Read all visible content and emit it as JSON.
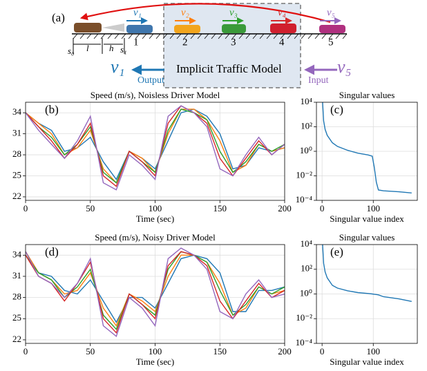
{
  "diagram": {
    "panel_label": "(a)",
    "speeds": [
      "v₁",
      "v₂",
      "v₃",
      "v₄",
      "v₅"
    ],
    "positions": [
      "s₀",
      "l",
      "h",
      "s₁"
    ],
    "car_numbers": [
      "1",
      "2",
      "3",
      "4",
      "5"
    ],
    "model": "Implicit Traffic Model",
    "output": "Output",
    "input": "Input",
    "output_speed": "v₁",
    "input_speed": "v₅"
  },
  "chart_data": [
    {
      "type": "line",
      "panel_label": "(b)",
      "title": "Speed (m/s), Noisless Driver Model",
      "xlabel": "Time (sec)",
      "x": [
        0,
        10,
        20,
        30,
        40,
        50,
        60,
        70,
        80,
        90,
        100,
        110,
        120,
        130,
        140,
        150,
        160,
        170,
        180,
        190,
        200
      ],
      "xlim": [
        0,
        200
      ],
      "xticks": [
        0,
        50,
        100,
        150,
        200
      ],
      "ylim": [
        21.5,
        35.5
      ],
      "yticks": [
        22,
        25,
        28,
        31,
        34
      ],
      "grid": true,
      "log_y": false,
      "series": [
        {
          "color": "#1f77b4",
          "values": [
            34,
            32.5,
            31.5,
            28.5,
            29,
            30.5,
            27,
            24.5,
            28.5,
            27.5,
            26,
            30,
            34,
            34.5,
            33.5,
            31,
            26,
            26.5,
            29,
            28.5,
            29
          ]
        },
        {
          "color": "#ff7f0e",
          "values": [
            34,
            32.5,
            31,
            28,
            29,
            31.5,
            26,
            24,
            28.5,
            27.5,
            25.5,
            31,
            34.5,
            34.5,
            33,
            30,
            25.5,
            26.5,
            29.5,
            28.5,
            29
          ]
        },
        {
          "color": "#2ca02c",
          "values": [
            34,
            32,
            30.5,
            28,
            29.5,
            32,
            25.5,
            24,
            28.5,
            27,
            25.5,
            31.5,
            34.5,
            34,
            33,
            28.5,
            25.5,
            27,
            29.5,
            28.5,
            29.5
          ]
        },
        {
          "color": "#d62728",
          "values": [
            34,
            32,
            30,
            27.5,
            29.5,
            32.5,
            25,
            23.5,
            28.5,
            27,
            25,
            32.5,
            35,
            34,
            32.5,
            27.5,
            25,
            27.5,
            30,
            28,
            29.5
          ]
        },
        {
          "color": "#9467bd",
          "values": [
            34,
            31.5,
            29.5,
            27.5,
            30,
            33.5,
            24,
            23,
            28,
            26.5,
            24.5,
            33.5,
            35,
            34,
            32,
            26,
            25,
            28,
            30.5,
            28,
            29.5
          ]
        }
      ]
    },
    {
      "type": "line",
      "panel_label": "(c)",
      "title": "Singular values",
      "xlabel": "Singular value index",
      "x": [
        1,
        3,
        6,
        10,
        20,
        30,
        50,
        70,
        90,
        98,
        102,
        106,
        110,
        120,
        150,
        175
      ],
      "xlim": [
        -11,
        186
      ],
      "xticks": [
        0,
        100
      ],
      "ylim": [
        0.0001,
        10000
      ],
      "log_y": true,
      "grid": true,
      "yticks": [
        {
          "value": 0.0001,
          "label": "10⁻⁴"
        },
        {
          "value": 0.01,
          "label": "10⁻²"
        },
        {
          "value": 1,
          "label": "10⁰"
        },
        {
          "value": 100,
          "label": "10²"
        },
        {
          "value": 10000,
          "label": "10⁴"
        }
      ],
      "series": [
        {
          "color": "#1f77b4",
          "values": [
            10000,
            300,
            60,
            20,
            5,
            2.5,
            1.2,
            0.7,
            0.5,
            0.4,
            0.05,
            0.003,
            0.0007,
            0.0006,
            0.0005,
            0.0004
          ]
        }
      ]
    },
    {
      "type": "line",
      "panel_label": "(d)",
      "title": "Speed (m/s), Noisy Driver Model",
      "xlabel": "Time (sec)",
      "x": [
        0,
        10,
        20,
        30,
        40,
        50,
        60,
        70,
        80,
        90,
        100,
        110,
        120,
        130,
        140,
        150,
        160,
        170,
        180,
        190,
        200
      ],
      "xlim": [
        0,
        200
      ],
      "xticks": [
        0,
        50,
        100,
        150,
        200
      ],
      "ylim": [
        21.5,
        35.5
      ],
      "yticks": [
        22,
        25,
        28,
        31,
        34
      ],
      "grid": true,
      "log_y": false,
      "series": [
        {
          "color": "#1f77b4",
          "values": [
            34.5,
            31.5,
            31,
            29,
            28.5,
            30.5,
            27.5,
            24.5,
            28,
            28,
            26.5,
            30,
            33.5,
            34,
            33.5,
            31.5,
            26,
            26,
            29,
            29,
            29.5
          ]
        },
        {
          "color": "#ff7f0e",
          "values": [
            34.5,
            31.5,
            30.5,
            28.5,
            29,
            31.5,
            26.5,
            24,
            28.5,
            27.5,
            26,
            31,
            34,
            34,
            33,
            30,
            25.5,
            26.5,
            29.5,
            28.5,
            29
          ]
        },
        {
          "color": "#2ca02c",
          "values": [
            34,
            31.5,
            30.5,
            28,
            29.5,
            32,
            25.5,
            23.5,
            28.5,
            27,
            25.5,
            32,
            34.5,
            34,
            33,
            29,
            25.5,
            27,
            29.5,
            28.5,
            29.5
          ]
        },
        {
          "color": "#d62728",
          "values": [
            34,
            31,
            30,
            27.5,
            30,
            33,
            25,
            23,
            28.5,
            27,
            25,
            32.5,
            34.5,
            34,
            32.5,
            27.5,
            25,
            27.5,
            30,
            28,
            29
          ]
        },
        {
          "color": "#9467bd",
          "values": [
            34.5,
            31,
            30,
            28,
            30,
            33.5,
            24,
            22.5,
            28,
            26.5,
            24,
            33.5,
            35,
            34,
            32,
            26,
            25,
            28.5,
            30.5,
            28,
            28.5
          ]
        }
      ]
    },
    {
      "type": "line",
      "panel_label": "(e)",
      "title": "Singular values",
      "xlabel": "Singular value index",
      "x": [
        1,
        3,
        6,
        10,
        20,
        30,
        50,
        70,
        90,
        98,
        102,
        106,
        110,
        120,
        150,
        175
      ],
      "xlim": [
        -11,
        186
      ],
      "xticks": [
        0,
        100
      ],
      "ylim": [
        0.0001,
        10000
      ],
      "log_y": true,
      "grid": true,
      "yticks": [
        {
          "value": 0.0001,
          "label": "10⁻⁴"
        },
        {
          "value": 0.01,
          "label": "10⁻²"
        },
        {
          "value": 1,
          "label": "10⁰"
        },
        {
          "value": 100,
          "label": "10²"
        },
        {
          "value": 10000,
          "label": "10⁴"
        }
      ],
      "series": [
        {
          "color": "#1f77b4",
          "values": [
            10000,
            300,
            60,
            20,
            5,
            3,
            1.8,
            1.3,
            1.1,
            1,
            0.95,
            0.9,
            0.85,
            0.6,
            0.4,
            0.25
          ]
        }
      ]
    }
  ]
}
